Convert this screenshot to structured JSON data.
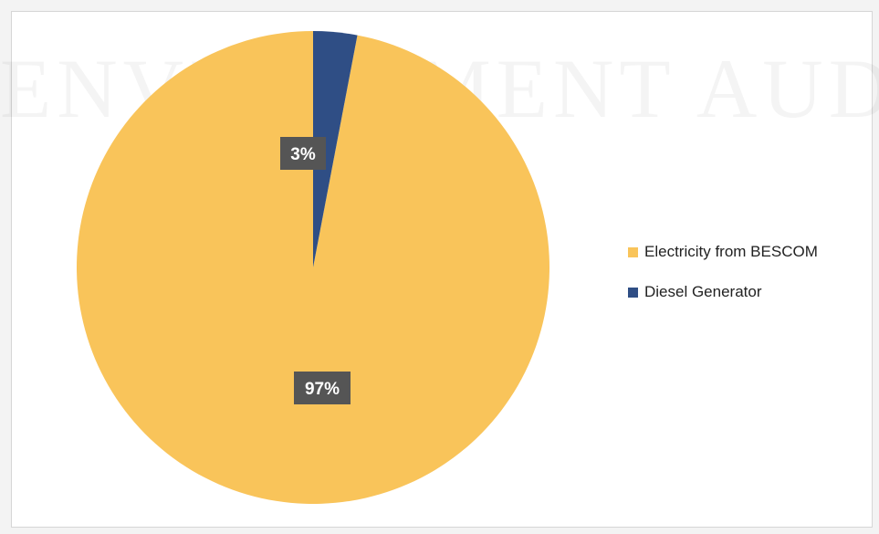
{
  "chart_data": {
    "type": "pie",
    "title": "",
    "slices": [
      {
        "label": "Electricity from BESCOM",
        "value": 97,
        "display": "97%",
        "color": "#F9C45A"
      },
      {
        "label": "Diesel Generator",
        "value": 3,
        "display": "3%",
        "color": "#2F4E85"
      }
    ],
    "legend_position": "right",
    "label_box_color": "#555555"
  },
  "background_watermark_text": "ENVIRONMENT AUDIT"
}
